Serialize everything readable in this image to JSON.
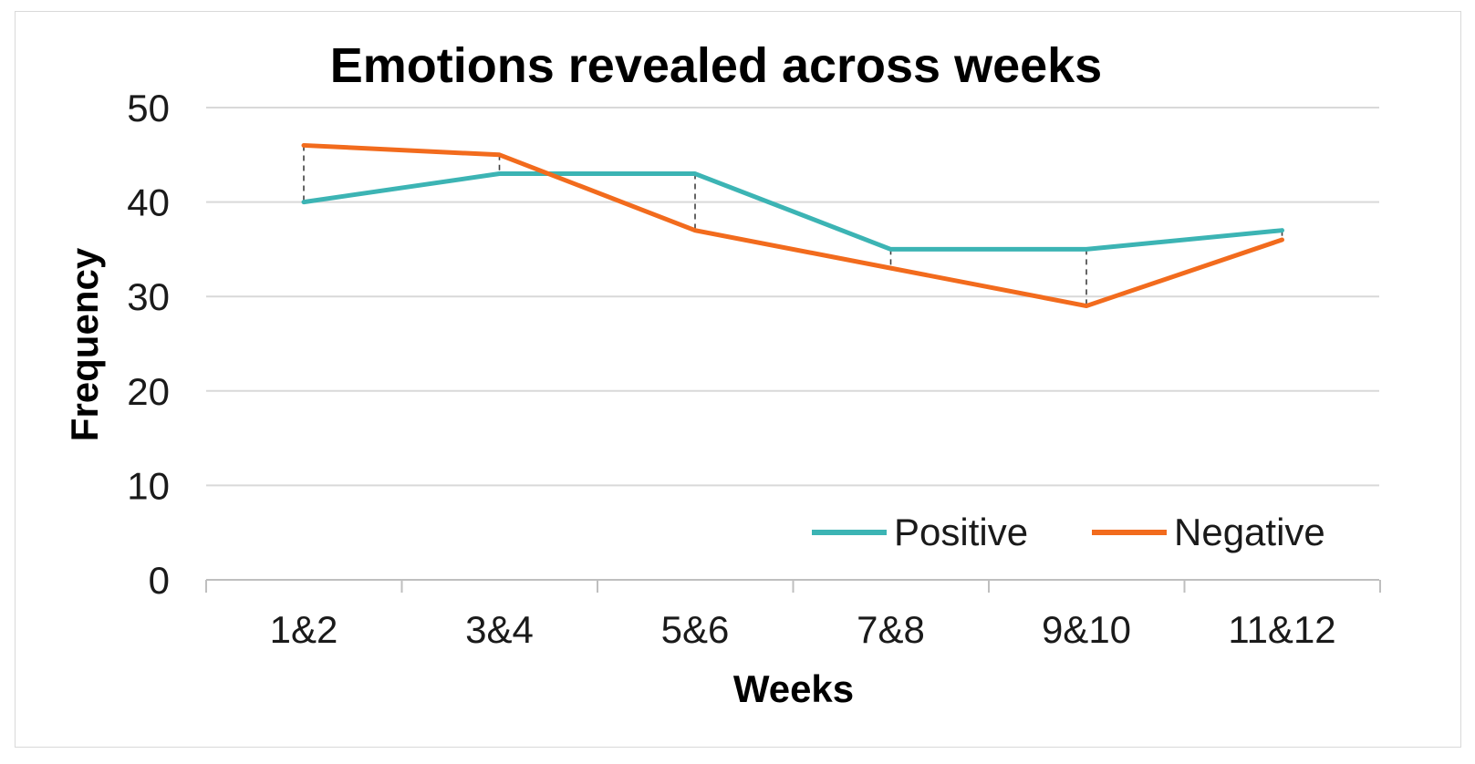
{
  "chart_data": {
    "type": "line",
    "title": "Emotions revealed across weeks",
    "xlabel": "Weeks",
    "ylabel": "Frequency",
    "categories": [
      "1&2",
      "3&4",
      "5&6",
      "7&8",
      "9&10",
      "11&12"
    ],
    "ylim": [
      0,
      50
    ],
    "yticks": [
      0,
      10,
      20,
      30,
      40,
      50
    ],
    "grid": true,
    "legend_position": "bottom-right",
    "high_low_lines": true,
    "series": [
      {
        "name": "Positive",
        "color": "#3cb4b4",
        "values": [
          40,
          43,
          43,
          35,
          35,
          37
        ]
      },
      {
        "name": "Negative",
        "color": "#f26b1d",
        "values": [
          46,
          45,
          37,
          33,
          29,
          36
        ]
      }
    ]
  }
}
